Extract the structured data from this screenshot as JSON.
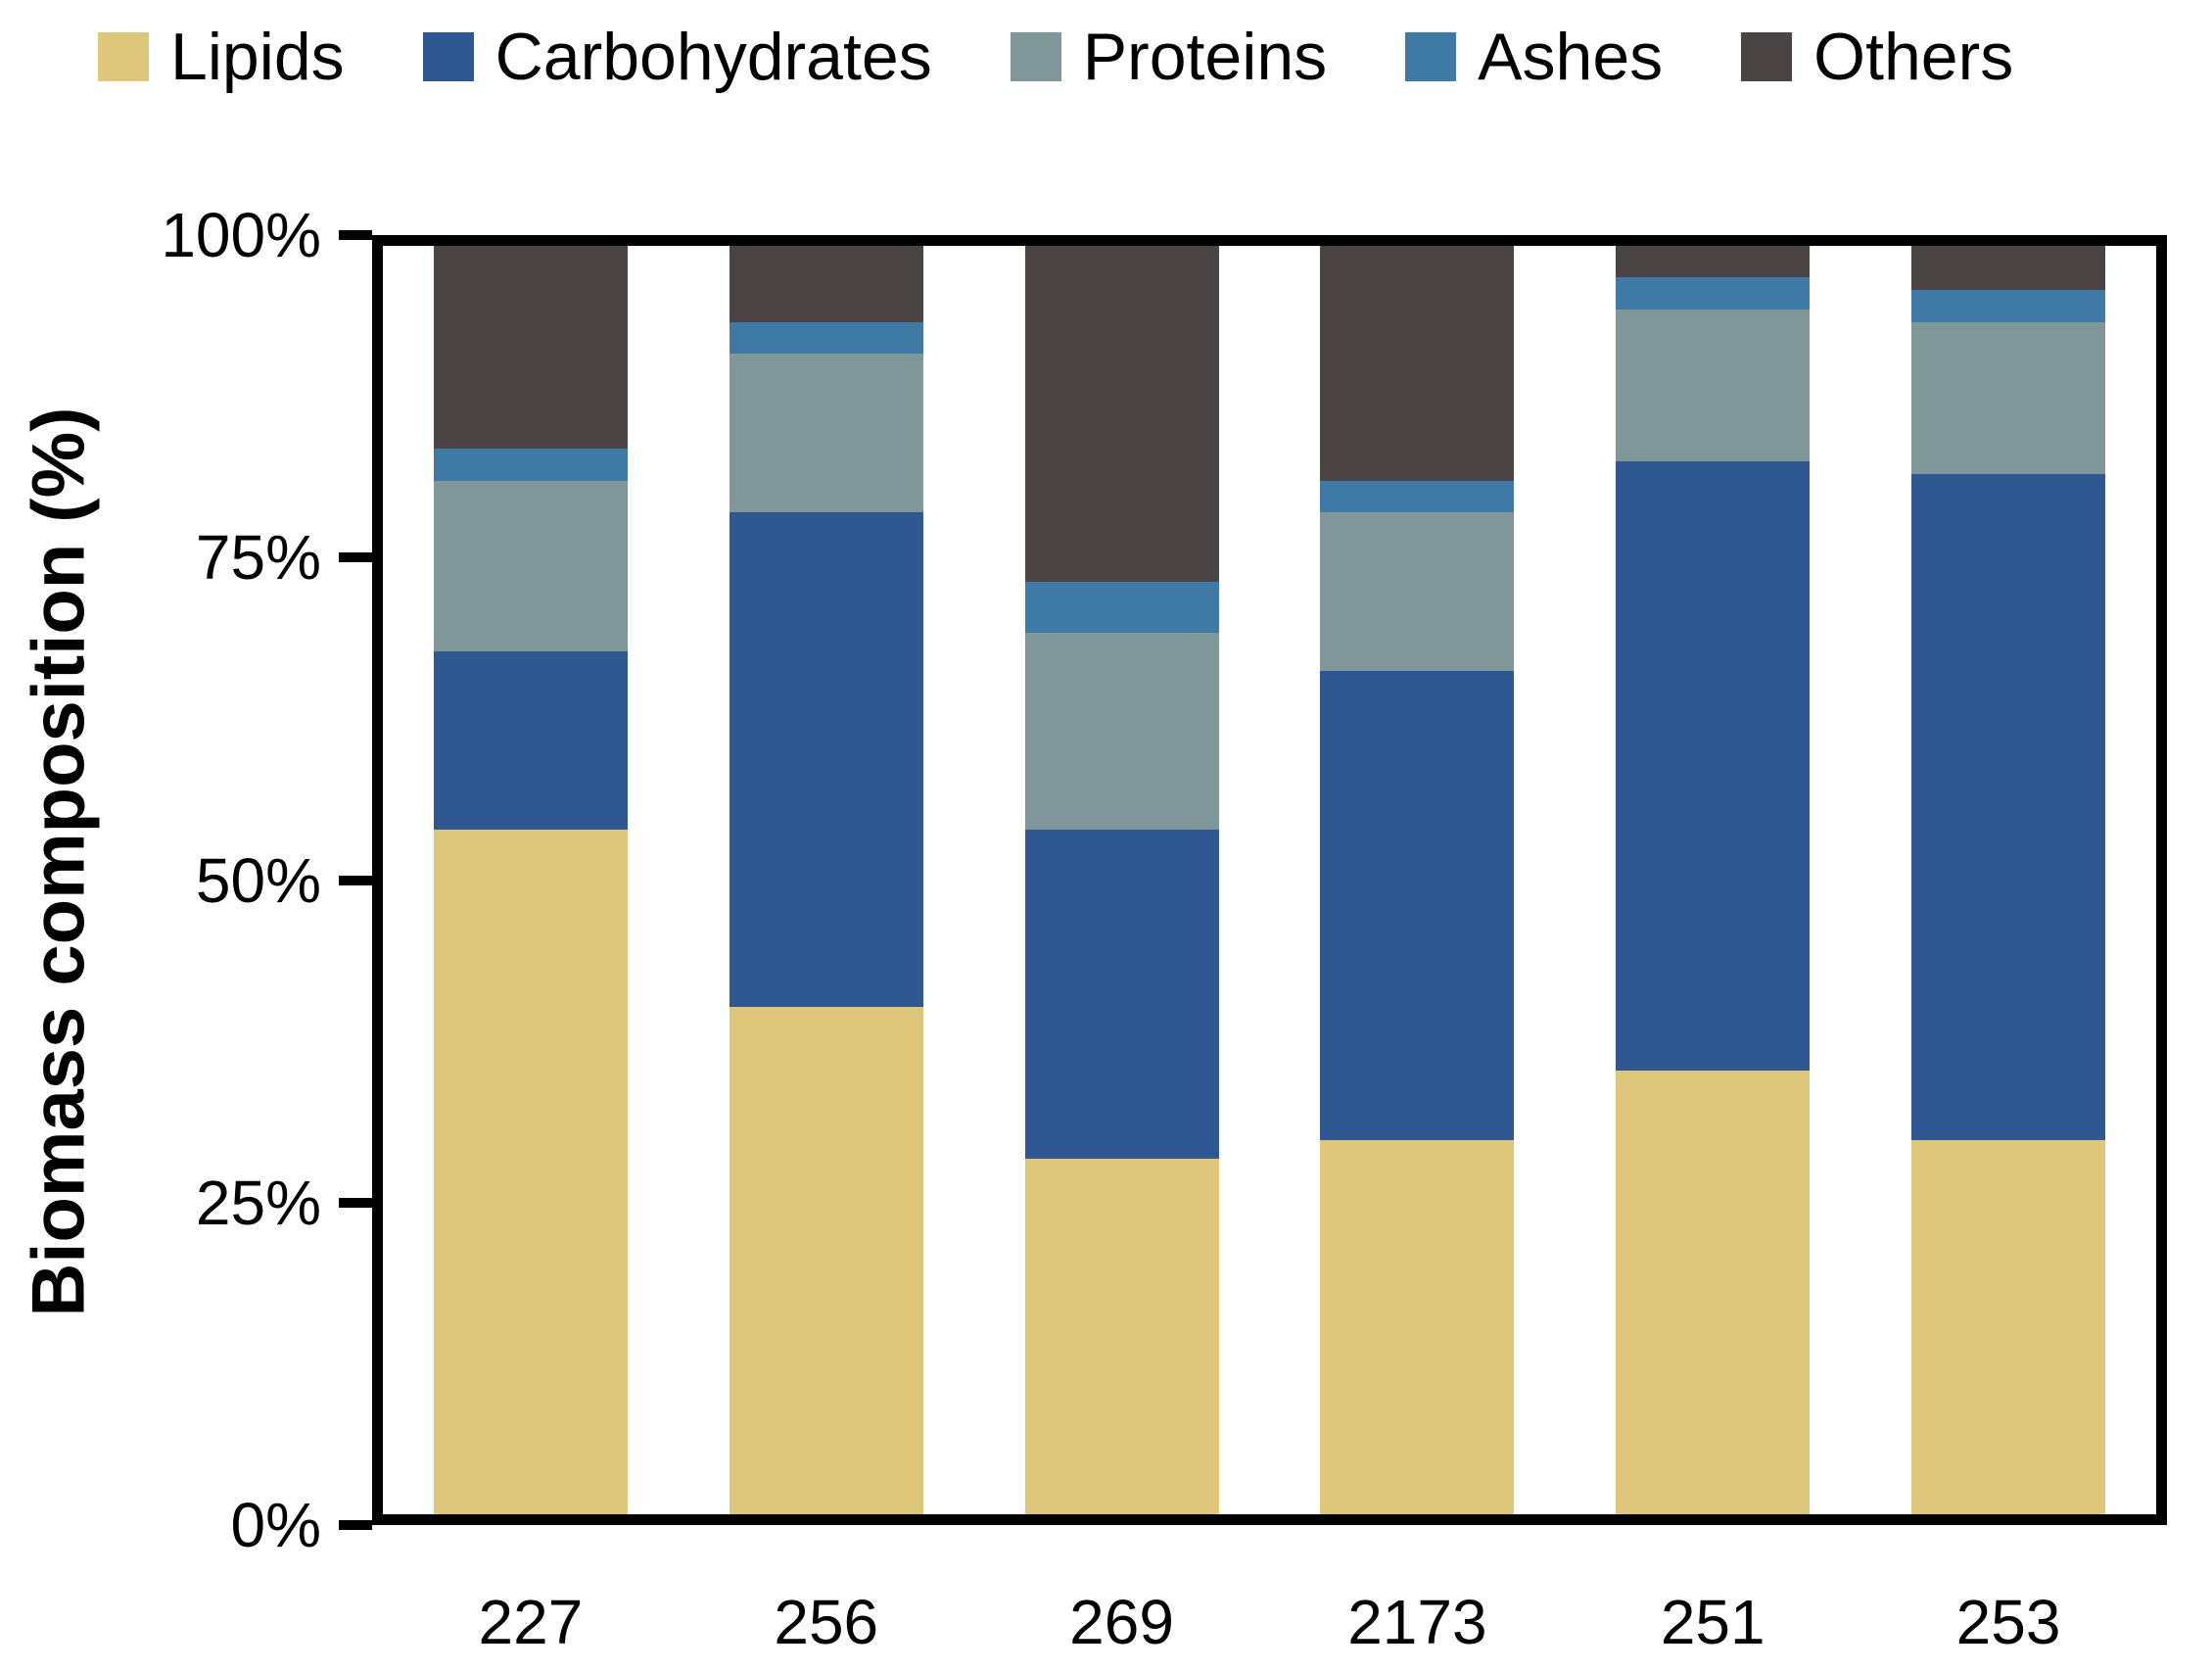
{
  "chart_data": {
    "type": "bar",
    "stacked": true,
    "ylabel": "Biomass composition (%)",
    "xlabel": "",
    "ylim": [
      0,
      100
    ],
    "yticks": [
      "0%",
      "25%",
      "50%",
      "75%",
      "100%"
    ],
    "categories": [
      "227",
      "256",
      "269",
      "2173",
      "251",
      "253"
    ],
    "series": [
      {
        "name": "Lipids",
        "color": "#DEC77B",
        "values": [
          54,
          40,
          28,
          29.5,
          35,
          29.5
        ]
      },
      {
        "name": "Carbohydrates",
        "color": "#2F5792",
        "values": [
          14,
          39,
          26,
          37,
          48,
          52.5
        ]
      },
      {
        "name": "Proteins",
        "color": "#7F9799",
        "values": [
          13.5,
          12.5,
          15.5,
          12.5,
          12,
          12
        ]
      },
      {
        "name": "Ashes",
        "color": "#3F7AA7",
        "values": [
          2.5,
          2.5,
          4,
          2.5,
          2.5,
          2.5
        ]
      },
      {
        "name": "Others",
        "color": "#4A4444",
        "values": [
          16,
          6,
          26.5,
          18.5,
          2.5,
          3.5
        ]
      }
    ],
    "legend_position": "top",
    "grid": false,
    "frame_color": "#000000",
    "background_color": "#FFFFFF"
  }
}
